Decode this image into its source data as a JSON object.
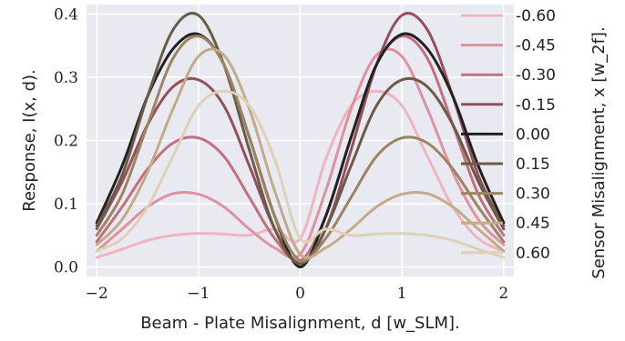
{
  "chart_data": {
    "type": "line",
    "xlabel": "Beam - Plate Misalignment, d [w_SLM].",
    "ylabel": "Response, I(x, d).",
    "legend_title": "Sensor Misalignment, x [w_2f].",
    "legend_position": "right",
    "grid": true,
    "xlim": [
      -2.1,
      2.1
    ],
    "ylim": [
      -0.015,
      0.415
    ],
    "x_ticks": [
      "−2",
      "−1",
      "0",
      "1",
      "2"
    ],
    "y_ticks": [
      "0.0",
      "0.1",
      "0.2",
      "0.3",
      "0.4"
    ],
    "x": [
      -2.0,
      -1.75,
      -1.5,
      -1.25,
      -1.0,
      -0.75,
      -0.5,
      -0.25,
      0.0,
      0.25,
      0.5,
      0.75,
      1.0,
      1.25,
      1.5,
      1.75,
      2.0
    ],
    "series": [
      {
        "name": "-0.60",
        "color": "#f0b4c0",
        "values": [
          0.015,
          0.028,
          0.042,
          0.05,
          0.053,
          0.052,
          0.05,
          0.06,
          0.045,
          0.17,
          0.255,
          0.278,
          0.255,
          0.175,
          0.095,
          0.045,
          0.025
        ]
      },
      {
        "name": "-0.45",
        "color": "#e0909e",
        "values": [
          0.025,
          0.06,
          0.095,
          0.116,
          0.115,
          0.095,
          0.06,
          0.03,
          0.02,
          0.12,
          0.25,
          0.335,
          0.333,
          0.25,
          0.15,
          0.075,
          0.035
        ]
      },
      {
        "name": "-0.30",
        "color": "#c46f7e",
        "values": [
          0.04,
          0.095,
          0.155,
          0.196,
          0.204,
          0.175,
          0.11,
          0.045,
          0.01,
          0.08,
          0.205,
          0.32,
          0.365,
          0.33,
          0.225,
          0.115,
          0.05
        ]
      },
      {
        "name": "-0.15",
        "color": "#934f5c",
        "values": [
          0.06,
          0.135,
          0.225,
          0.285,
          0.296,
          0.255,
          0.16,
          0.06,
          0.005,
          0.06,
          0.185,
          0.32,
          0.398,
          0.375,
          0.27,
          0.145,
          0.065
        ]
      },
      {
        "name": "0.00",
        "color": "#232020",
        "values": [
          0.07,
          0.16,
          0.27,
          0.345,
          0.368,
          0.32,
          0.205,
          0.08,
          0.0,
          0.08,
          0.205,
          0.32,
          0.368,
          0.345,
          0.27,
          0.16,
          0.07
        ]
      },
      {
        "name": "0.15",
        "color": "#6b5a45",
        "values": [
          0.065,
          0.145,
          0.27,
          0.375,
          0.398,
          0.32,
          0.185,
          0.06,
          0.005,
          0.06,
          0.16,
          0.255,
          0.296,
          0.285,
          0.225,
          0.135,
          0.06
        ]
      },
      {
        "name": "0.30",
        "color": "#9c8460",
        "values": [
          0.05,
          0.115,
          0.225,
          0.33,
          0.365,
          0.32,
          0.205,
          0.08,
          0.01,
          0.045,
          0.11,
          0.175,
          0.204,
          0.196,
          0.155,
          0.095,
          0.04
        ]
      },
      {
        "name": "0.45",
        "color": "#c2ab88",
        "values": [
          0.035,
          0.075,
          0.15,
          0.25,
          0.333,
          0.335,
          0.25,
          0.12,
          0.02,
          0.03,
          0.06,
          0.095,
          0.115,
          0.116,
          0.095,
          0.06,
          0.025
        ]
      },
      {
        "name": "0.60",
        "color": "#dfd0b8",
        "values": [
          0.025,
          0.045,
          0.095,
          0.175,
          0.255,
          0.278,
          0.255,
          0.17,
          0.045,
          0.06,
          0.05,
          0.052,
          0.053,
          0.05,
          0.042,
          0.028,
          0.015
        ]
      }
    ]
  }
}
